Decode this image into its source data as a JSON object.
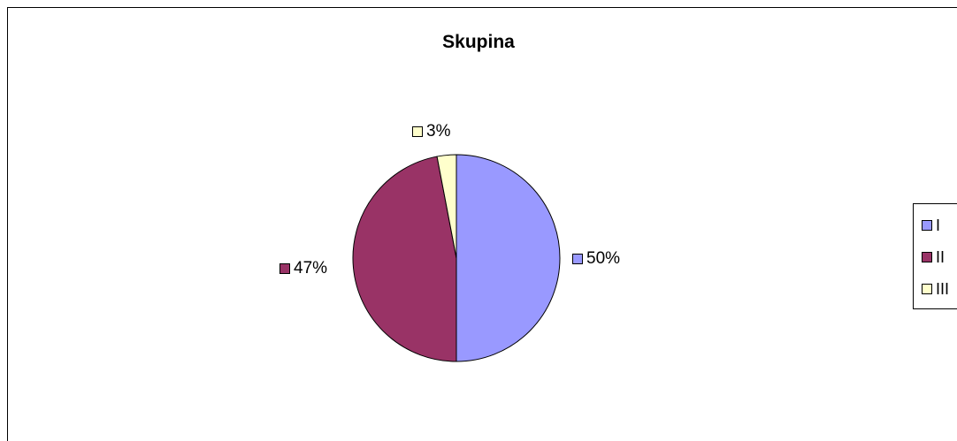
{
  "chart_data": {
    "type": "pie",
    "title": "Skupina",
    "categories": [
      "I",
      "II",
      "III"
    ],
    "values": [
      50,
      47,
      3
    ],
    "data_labels": [
      "50%",
      "47%",
      "3%"
    ],
    "colors": [
      "#9999ff",
      "#993366",
      "#ffffcc"
    ],
    "legend": "right",
    "start_angle_deg": 0,
    "direction": "clockwise"
  }
}
